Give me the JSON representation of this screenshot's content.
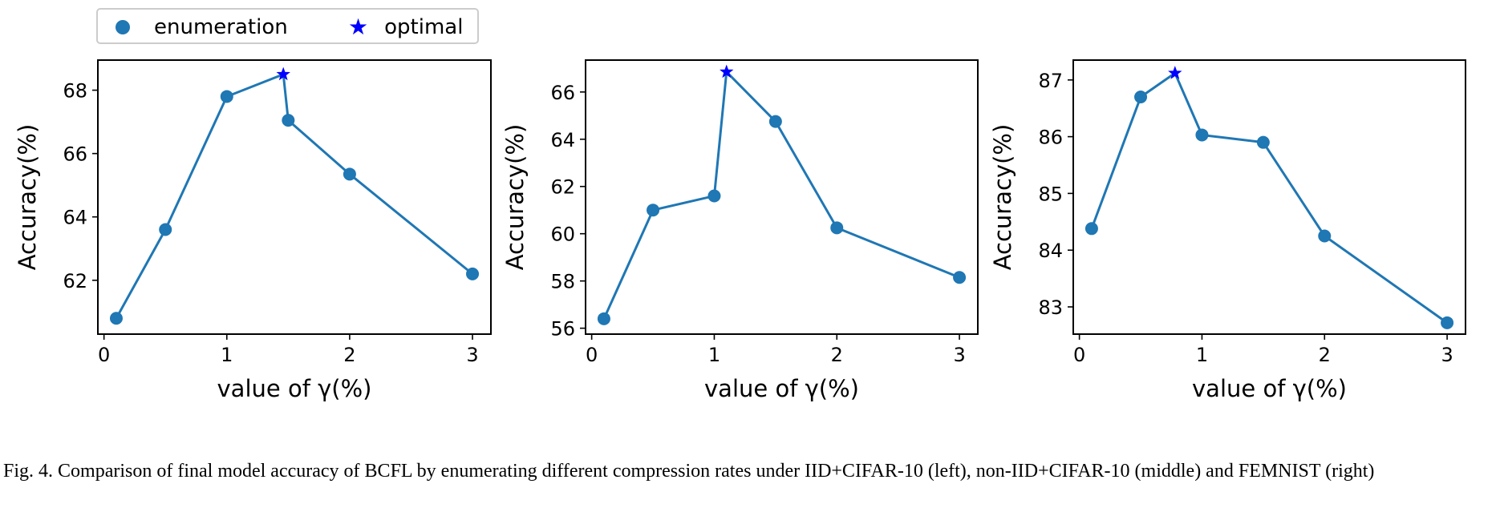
{
  "legend": {
    "enumeration_label": "enumeration",
    "optimal_label": "optimal"
  },
  "colors": {
    "enumeration": "#1f77b4",
    "optimal": "#0000ff"
  },
  "caption": "Fig. 4.  Comparison of final model accuracy of BCFL by enumerating different compression rates under IID+CIFAR-10 (left), non-IID+CIFAR-10 (middle) and FEMNIST (right)",
  "chart_data": [
    {
      "type": "line",
      "xlabel": "value of γ(%)",
      "ylabel": "Accuracy(%)",
      "xlim": [
        -0.05,
        3.15
      ],
      "ylim": [
        60.3,
        68.95
      ],
      "xticks": [
        0,
        1,
        2,
        3
      ],
      "yticks": [
        62,
        64,
        66,
        68
      ],
      "x": [
        0.1,
        0.5,
        1.0,
        1.46,
        1.5,
        2.0,
        3.0
      ],
      "y": [
        60.8,
        63.6,
        67.8,
        68.5,
        67.05,
        65.35,
        62.2
      ],
      "optimal": {
        "x": 1.46,
        "y": 68.5
      }
    },
    {
      "type": "line",
      "xlabel": "value of γ(%)",
      "ylabel": "Accuracy(%)",
      "xlim": [
        -0.05,
        3.15
      ],
      "ylim": [
        55.75,
        67.35
      ],
      "xticks": [
        0,
        1,
        2,
        3
      ],
      "yticks": [
        56,
        58,
        60,
        62,
        64,
        66
      ],
      "x": [
        0.1,
        0.5,
        1.0,
        1.1,
        1.5,
        2.0,
        3.0
      ],
      "y": [
        56.4,
        61.0,
        61.6,
        66.85,
        64.75,
        60.25,
        58.15
      ],
      "optimal": {
        "x": 1.1,
        "y": 66.85
      }
    },
    {
      "type": "line",
      "xlabel": "value of γ(%)",
      "ylabel": "Accuracy(%)",
      "xlim": [
        -0.05,
        3.15
      ],
      "ylim": [
        82.52,
        87.35
      ],
      "xticks": [
        0,
        1,
        2,
        3
      ],
      "yticks": [
        83,
        84,
        85,
        86,
        87
      ],
      "x": [
        0.1,
        0.5,
        0.78,
        1.0,
        1.5,
        2.0,
        3.0
      ],
      "y": [
        84.38,
        86.7,
        87.12,
        86.03,
        85.9,
        84.25,
        82.72
      ],
      "optimal": {
        "x": 0.78,
        "y": 87.12
      }
    }
  ]
}
